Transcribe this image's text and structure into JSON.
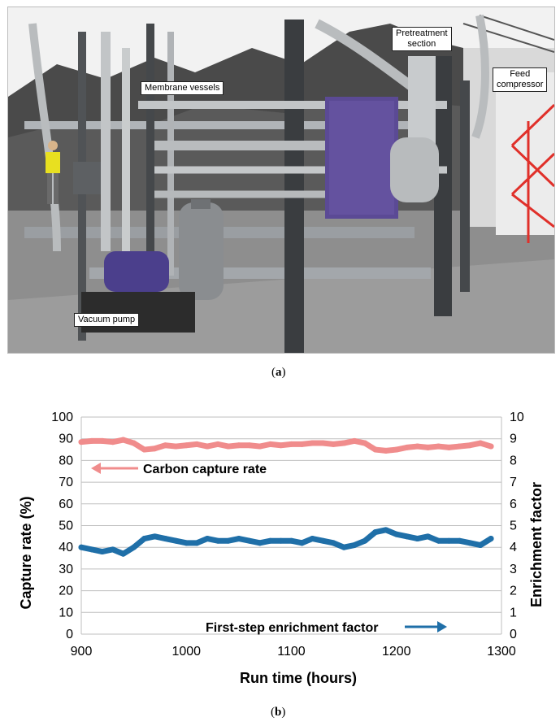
{
  "photo": {
    "callouts": {
      "membrane_vessels": "Membrane vessels",
      "pretreatment_section": "Pretreatment\nsection",
      "feed_compressor": "Feed\ncompressor",
      "vacuum_pump": "Vacuum pump"
    },
    "label_a": "a",
    "colors": {
      "sky": "#f2f2f2",
      "hill": "#4a4a4a",
      "floor": "#8e8e8e",
      "steel": "#b9bcbe",
      "frame": "#3a3d40",
      "pump": "#4b3f8c",
      "red": "#e0302a"
    }
  },
  "label_b": "b",
  "chart_data": {
    "type": "scatter",
    "xlabel": "Run time (hours)",
    "ylabel": "Capture rate (%)",
    "y2label": "Enrichment factor",
    "xlim": [
      900,
      1300
    ],
    "x_ticks": [
      900,
      1000,
      1100,
      1200,
      1300
    ],
    "ylim": [
      0,
      100
    ],
    "y_ticks": [
      0,
      10,
      20,
      30,
      40,
      50,
      60,
      70,
      80,
      90,
      100
    ],
    "y2lim": [
      0,
      10
    ],
    "y2_ticks": [
      0,
      1,
      2,
      3,
      4,
      5,
      6,
      7,
      8,
      9,
      10
    ],
    "grid": true,
    "series": [
      {
        "name": "Carbon capture rate",
        "axis": "left",
        "color": "#f08c8c",
        "x": [
          900,
          910,
          920,
          930,
          940,
          950,
          960,
          970,
          980,
          990,
          1000,
          1010,
          1020,
          1030,
          1040,
          1050,
          1060,
          1070,
          1080,
          1090,
          1100,
          1110,
          1120,
          1130,
          1140,
          1150,
          1160,
          1170,
          1180,
          1190,
          1200,
          1210,
          1220,
          1230,
          1240,
          1250,
          1260,
          1270,
          1280,
          1290
        ],
        "y": [
          88.5,
          89,
          89,
          88.5,
          89.5,
          88,
          85,
          85.5,
          87,
          86.5,
          87,
          87.5,
          86.5,
          87.5,
          86.5,
          87,
          87,
          86.5,
          87.5,
          87,
          87.5,
          87.5,
          88,
          88,
          87.5,
          88,
          89,
          88,
          85,
          84.5,
          85,
          86,
          86.5,
          86,
          86.5,
          86,
          86.5,
          87,
          88,
          86.5
        ]
      },
      {
        "name": "First-step enrichment factor",
        "axis": "right",
        "color": "#1f6fa8",
        "x": [
          900,
          910,
          920,
          930,
          940,
          950,
          960,
          970,
          980,
          990,
          1000,
          1010,
          1020,
          1030,
          1040,
          1050,
          1060,
          1070,
          1080,
          1090,
          1100,
          1110,
          1120,
          1130,
          1140,
          1150,
          1160,
          1170,
          1180,
          1190,
          1200,
          1210,
          1220,
          1230,
          1240,
          1250,
          1260,
          1270,
          1280,
          1290
        ],
        "y": [
          4.0,
          3.9,
          3.8,
          3.9,
          3.7,
          4.0,
          4.4,
          4.5,
          4.4,
          4.3,
          4.2,
          4.2,
          4.4,
          4.3,
          4.3,
          4.4,
          4.3,
          4.2,
          4.3,
          4.3,
          4.3,
          4.2,
          4.4,
          4.3,
          4.2,
          4.0,
          4.1,
          4.3,
          4.7,
          4.8,
          4.6,
          4.5,
          4.4,
          4.5,
          4.3,
          4.3,
          4.3,
          4.2,
          4.1,
          4.4
        ]
      }
    ],
    "annotations": [
      {
        "text": "Carbon capture rate",
        "arrow": "left"
      },
      {
        "text": "First-step enrichment factor",
        "arrow": "right"
      }
    ]
  }
}
